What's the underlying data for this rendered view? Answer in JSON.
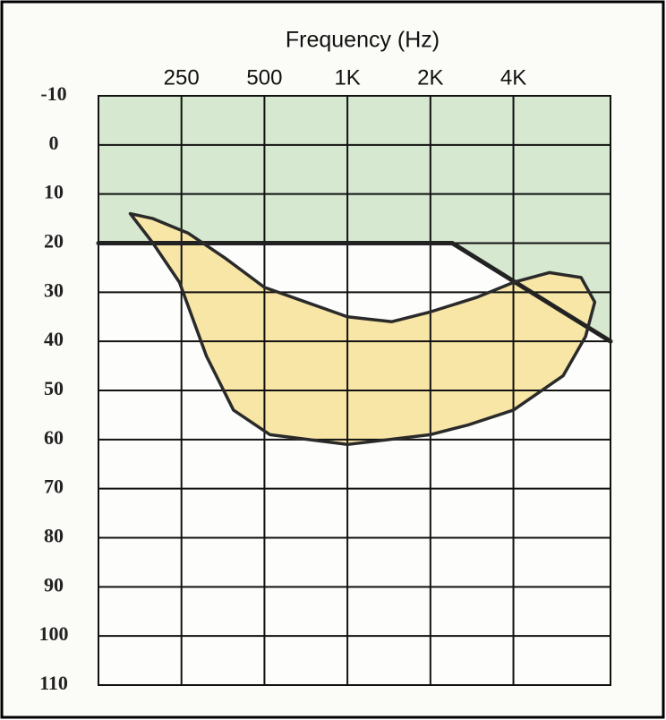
{
  "chart_data": {
    "type": "line",
    "xlabel": "Frequency (Hz)",
    "xscale": "log",
    "xlim": [
      125,
      9000
    ],
    "xticks": [
      250,
      500,
      {
        "value": 1000,
        "label": "1K"
      },
      {
        "value": 2000,
        "label": "2K"
      },
      {
        "value": 4000,
        "label": "4K"
      }
    ],
    "ylim": [
      110,
      -10
    ],
    "yticks": [
      -10,
      0,
      10,
      20,
      30,
      40,
      50,
      60,
      70,
      80,
      90,
      100,
      110
    ],
    "grid": true,
    "series": [
      {
        "color": "#222222",
        "fill_above": "#d6e8cf",
        "x": [
          125,
          2400,
          9000
        ],
        "values": [
          20,
          20,
          40
        ]
      },
      {
        "color": "#2a2a2a",
        "fill": "#f8e6a6",
        "x": [
          163,
          197,
          265,
          359,
          500,
          707,
          1000,
          1450,
          2000,
          2960,
          4000,
          5400,
          7040,
          7890,
          7310,
          6060,
          4000,
          2750,
          2000,
          1000,
          523,
          386,
          308,
          246,
          197,
          163
        ],
        "values": [
          14,
          15,
          18,
          23,
          29,
          32,
          35,
          36,
          34,
          31,
          28,
          26,
          27,
          32,
          39,
          47,
          54,
          57,
          59,
          61,
          59,
          54,
          43,
          28,
          20,
          14
        ]
      }
    ]
  }
}
